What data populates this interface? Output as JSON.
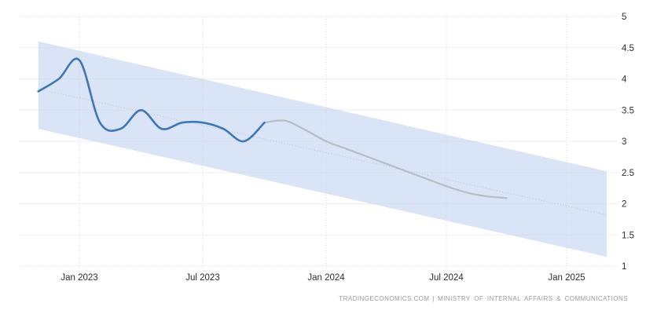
{
  "chart_data": {
    "type": "line",
    "title": "",
    "unit": "percent",
    "y_axis": {
      "side": "right",
      "tick_labels": [
        "5",
        "4.5",
        "4",
        "3.5",
        "3",
        "2.5",
        "2",
        "1.5",
        "1"
      ],
      "ylim": [
        1,
        5
      ],
      "grid": "dotted"
    },
    "x_axis": {
      "ticks": [
        [
          "2023-01",
          "Jan 2023"
        ],
        [
          "2023-07",
          "Jul 2023"
        ],
        [
          "2024-01",
          "Jan 2024"
        ],
        [
          "2024-07",
          "Jul 2024"
        ],
        [
          "2025-01",
          "Jan 2025"
        ]
      ],
      "grid": "dotted"
    },
    "series": [
      {
        "name": "actual",
        "color": "#3F76B5",
        "width": 2.6,
        "points": [
          [
            "2022-11",
            3.8
          ],
          [
            "2022-12",
            4.0
          ],
          [
            "2023-01",
            4.3
          ],
          [
            "2023-02",
            3.3
          ],
          [
            "2023-03",
            3.2
          ],
          [
            "2023-04",
            3.5
          ],
          [
            "2023-05",
            3.2
          ],
          [
            "2023-06",
            3.3
          ],
          [
            "2023-07",
            3.3
          ],
          [
            "2023-08",
            3.2
          ],
          [
            "2023-09",
            3.0
          ],
          [
            "2023-10",
            3.3
          ]
        ]
      },
      {
        "name": "forecast",
        "color": "#B9BEC6",
        "width": 2.3,
        "points": [
          [
            "2023-10",
            3.3
          ],
          [
            "2023-11",
            3.33
          ],
          [
            "2023-12",
            3.18
          ],
          [
            "2024-01",
            3.0
          ],
          [
            "2024-02",
            2.88
          ],
          [
            "2024-03",
            2.76
          ],
          [
            "2024-04",
            2.64
          ],
          [
            "2024-05",
            2.52
          ],
          [
            "2024-06",
            2.4
          ],
          [
            "2024-07",
            2.28
          ],
          [
            "2024-08",
            2.18
          ],
          [
            "2024-09",
            2.12
          ],
          [
            "2024-10",
            2.09
          ]
        ]
      }
    ],
    "forecast_band": {
      "name": "confidence-band",
      "fill": "#D9E5F7",
      "x_start": "2022-11",
      "x_end": "2025-03",
      "upper_start": 4.6,
      "upper_end": 2.52,
      "lower_start": 3.2,
      "lower_end": 1.15
    },
    "trend_line": {
      "name": "trend-midline",
      "color": "#C2C2C2",
      "style": "dotted",
      "start": [
        "2022-11",
        3.84
      ],
      "end": [
        "2025-03",
        1.82
      ]
    },
    "grid_color": "#D2D2D2",
    "tick_text_color": "#2D2D2D"
  },
  "footer": {
    "source": "TRADINGECONOMICS.COM",
    "separator": "|",
    "provider": "MINISTRY OF INTERNAL AFFAIRS & COMMUNICATIONS"
  }
}
